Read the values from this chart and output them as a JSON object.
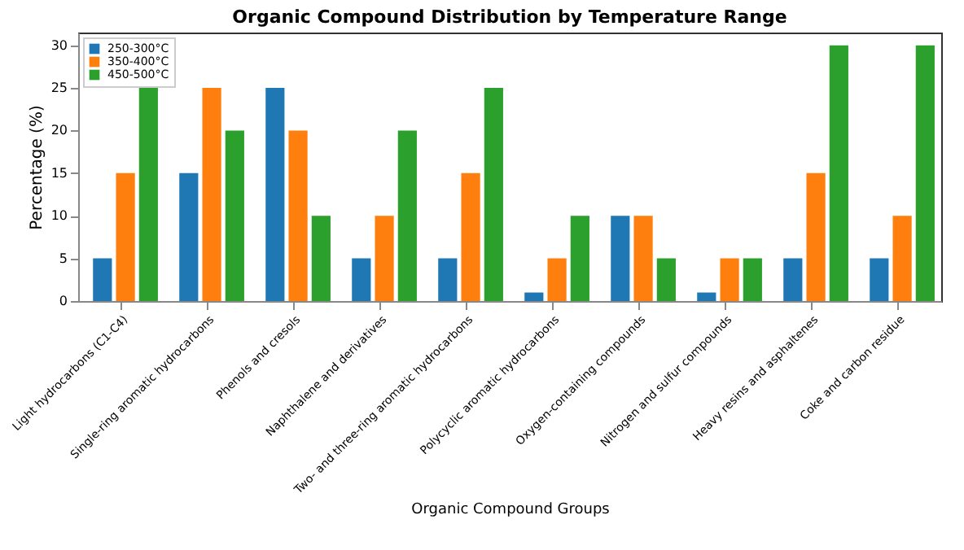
{
  "chart_data": {
    "type": "bar",
    "title": "Organic Compound Distribution by Temperature Range",
    "xlabel": "Organic Compound Groups",
    "ylabel": "Percentage (%)",
    "categories": [
      "Light hydrocarbons (C1-C4)",
      "Single-ring aromatic hydrocarbons",
      "Phenols and cresols",
      "Naphthalene and derivatives",
      "Two- and three-ring aromatic hydrocarbons",
      "Polycyclic aromatic hydrocarbons",
      "Oxygen-containing compounds",
      "Nitrogen and sulfur compounds",
      "Heavy resins and asphaltenes",
      "Coke and carbon residue"
    ],
    "series": [
      {
        "name": "250-300°C",
        "color": "#1f77b4",
        "values": [
          5,
          15,
          25,
          5,
          5,
          1,
          10,
          1,
          5,
          5
        ]
      },
      {
        "name": "350-400°C",
        "color": "#ff7f0e",
        "values": [
          15,
          25,
          20,
          10,
          15,
          5,
          10,
          5,
          15,
          10
        ]
      },
      {
        "name": "450-500°C",
        "color": "#2ca02c",
        "values": [
          25,
          20,
          10,
          20,
          25,
          10,
          5,
          5,
          30,
          30
        ]
      }
    ],
    "ylim": [
      0,
      31.5
    ],
    "yticks": [
      0,
      5,
      10,
      15,
      20,
      25,
      30
    ],
    "legend": "top left",
    "grid": false
  }
}
